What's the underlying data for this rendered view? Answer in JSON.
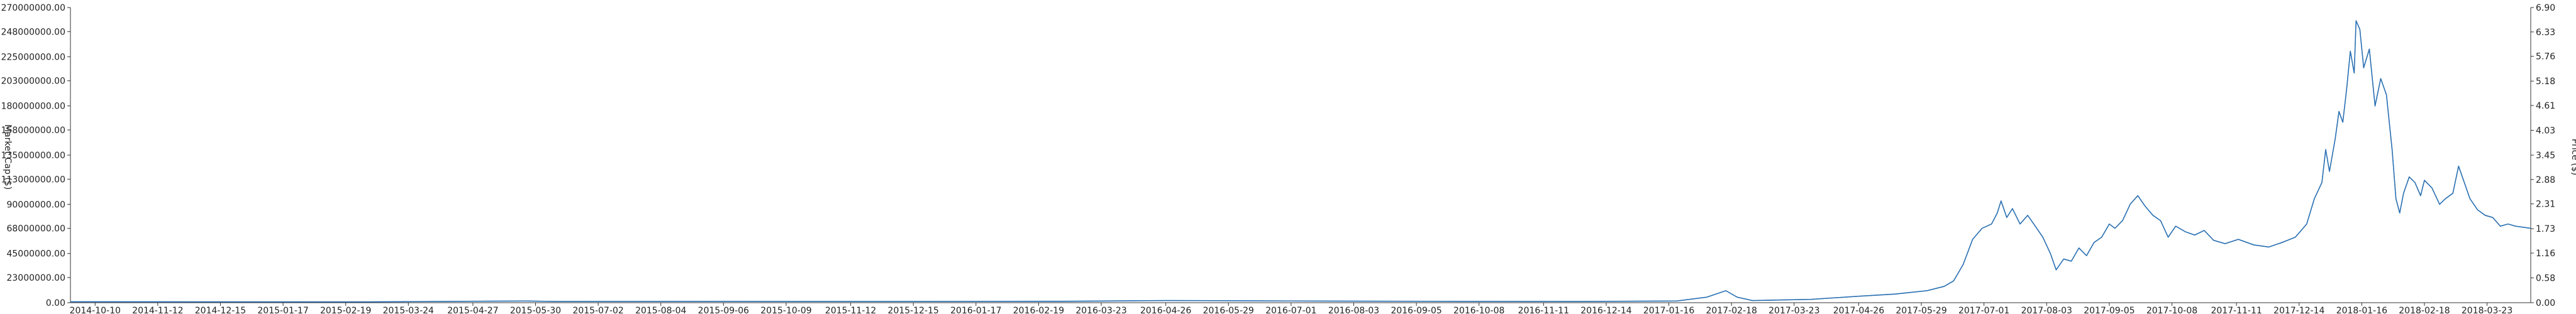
{
  "chart_data": {
    "type": "line",
    "title": "",
    "xlabel": "",
    "y_left": {
      "label": "Market Cap ($)",
      "ticks": [
        "0.00",
        "23000000.00",
        "45000000.00",
        "68000000.00",
        "90000000.00",
        "113000000.00",
        "135000000.00",
        "158000000.00",
        "180000000.00",
        "203000000.00",
        "225000000.00",
        "248000000.00",
        "270000000.00"
      ],
      "ylim": [
        0,
        270000000
      ]
    },
    "y_right": {
      "label": "Price ($)",
      "ticks": [
        "0.00",
        "0.58",
        "1.16",
        "1.73",
        "2.31",
        "2.88",
        "3.45",
        "4.03",
        "4.61",
        "5.18",
        "5.76",
        "6.33",
        "6.90"
      ],
      "ylim": [
        0,
        6.9
      ]
    },
    "x_ticks": [
      "2014-10-10",
      "2014-11-12",
      "2014-12-15",
      "2015-01-17",
      "2015-02-19",
      "2015-03-24",
      "2015-04-27",
      "2015-05-30",
      "2015-07-02",
      "2015-08-04",
      "2015-09-06",
      "2015-10-09",
      "2015-11-12",
      "2015-12-15",
      "2016-01-17",
      "2016-02-19",
      "2016-03-23",
      "2016-04-26",
      "2016-05-29",
      "2016-07-01",
      "2016-08-03",
      "2016-09-05",
      "2016-10-08",
      "2016-11-11",
      "2016-12-14",
      "2017-01-16",
      "2017-02-18",
      "2017-03-23",
      "2017-04-26",
      "2017-05-29",
      "2017-07-01",
      "2017-08-03",
      "2017-09-05",
      "2017-10-08",
      "2017-11-11",
      "2017-12-14",
      "2018-01-16",
      "2018-02-18",
      "2018-03-23"
    ],
    "x_range": [
      "2014-09-27",
      "2018-04-15"
    ],
    "grid": false,
    "legend": "none",
    "series": [
      {
        "axis": "left",
        "color": "#4fa3d9",
        "points": [
          [
            "2014-09-27",
            900000
          ],
          [
            "2014-12-01",
            800000
          ],
          [
            "2015-03-01",
            700000
          ],
          [
            "2015-05-25",
            1500000
          ],
          [
            "2015-06-10",
            1100000
          ],
          [
            "2015-09-01",
            1200000
          ],
          [
            "2015-12-01",
            1000000
          ],
          [
            "2016-03-01",
            1400000
          ],
          [
            "2016-04-26",
            2000000
          ],
          [
            "2016-07-01",
            1600000
          ],
          [
            "2016-10-01",
            1200000
          ],
          [
            "2016-12-01",
            1100000
          ],
          [
            "2017-01-20",
            1500000
          ],
          [
            "2017-02-05",
            5000000
          ],
          [
            "2017-02-15",
            11000000
          ],
          [
            "2017-02-21",
            5000000
          ],
          [
            "2017-03-01",
            2000000
          ],
          [
            "2017-04-01",
            3000000
          ],
          [
            "2017-04-26",
            6000000
          ],
          [
            "2017-05-15",
            8000000
          ],
          [
            "2017-06-01",
            11000000
          ],
          [
            "2017-06-10",
            15000000
          ],
          [
            "2017-06-15",
            20000000
          ],
          [
            "2017-06-20",
            35000000
          ],
          [
            "2017-06-25",
            58000000
          ],
          [
            "2017-06-30",
            68000000
          ],
          [
            "2017-07-05",
            72000000
          ],
          [
            "2017-07-08",
            82000000
          ],
          [
            "2017-07-10",
            93000000
          ],
          [
            "2017-07-13",
            78000000
          ],
          [
            "2017-07-16",
            86000000
          ],
          [
            "2017-07-20",
            72000000
          ],
          [
            "2017-07-24",
            80000000
          ],
          [
            "2017-07-28",
            70000000
          ],
          [
            "2017-08-01",
            60000000
          ],
          [
            "2017-08-05",
            45000000
          ],
          [
            "2017-08-08",
            30000000
          ],
          [
            "2017-08-12",
            40000000
          ],
          [
            "2017-08-16",
            38000000
          ],
          [
            "2017-08-20",
            50000000
          ],
          [
            "2017-08-24",
            43000000
          ],
          [
            "2017-08-28",
            55000000
          ],
          [
            "2017-09-01",
            60000000
          ],
          [
            "2017-09-05",
            72000000
          ],
          [
            "2017-09-08",
            68000000
          ],
          [
            "2017-09-12",
            75000000
          ],
          [
            "2017-09-16",
            90000000
          ],
          [
            "2017-09-20",
            98000000
          ],
          [
            "2017-09-24",
            88000000
          ],
          [
            "2017-09-28",
            80000000
          ],
          [
            "2017-10-02",
            75000000
          ],
          [
            "2017-10-06",
            60000000
          ],
          [
            "2017-10-10",
            70000000
          ],
          [
            "2017-10-15",
            65000000
          ],
          [
            "2017-10-20",
            62000000
          ],
          [
            "2017-10-25",
            66000000
          ],
          [
            "2017-10-30",
            57000000
          ],
          [
            "2017-11-05",
            54000000
          ],
          [
            "2017-11-12",
            58000000
          ],
          [
            "2017-11-20",
            53000000
          ],
          [
            "2017-11-28",
            51000000
          ],
          [
            "2017-12-05",
            55000000
          ],
          [
            "2017-12-12",
            60000000
          ],
          [
            "2017-12-18",
            72000000
          ],
          [
            "2017-12-22",
            95000000
          ],
          [
            "2017-12-26",
            110000000
          ],
          [
            "2017-12-28",
            140000000
          ],
          [
            "2017-12-30",
            120000000
          ],
          [
            "2018-01-02",
            150000000
          ],
          [
            "2018-01-04",
            175000000
          ],
          [
            "2018-01-06",
            165000000
          ],
          [
            "2018-01-08",
            195000000
          ],
          [
            "2018-01-10",
            230000000
          ],
          [
            "2018-01-12",
            210000000
          ],
          [
            "2018-01-13",
            258000000
          ],
          [
            "2018-01-15",
            250000000
          ],
          [
            "2018-01-17",
            215000000
          ],
          [
            "2018-01-20",
            232000000
          ],
          [
            "2018-01-23",
            180000000
          ],
          [
            "2018-01-26",
            205000000
          ],
          [
            "2018-01-29",
            190000000
          ],
          [
            "2018-02-01",
            140000000
          ],
          [
            "2018-02-03",
            95000000
          ],
          [
            "2018-02-05",
            82000000
          ],
          [
            "2018-02-07",
            100000000
          ],
          [
            "2018-02-10",
            115000000
          ],
          [
            "2018-02-13",
            110000000
          ],
          [
            "2018-02-16",
            98000000
          ],
          [
            "2018-02-18",
            112000000
          ],
          [
            "2018-02-22",
            105000000
          ],
          [
            "2018-02-26",
            90000000
          ],
          [
            "2018-03-01",
            95000000
          ],
          [
            "2018-03-05",
            100000000
          ],
          [
            "2018-03-08",
            125000000
          ],
          [
            "2018-03-11",
            110000000
          ],
          [
            "2018-03-14",
            95000000
          ],
          [
            "2018-03-18",
            85000000
          ],
          [
            "2018-03-22",
            80000000
          ],
          [
            "2018-03-26",
            78000000
          ],
          [
            "2018-03-30",
            70000000
          ],
          [
            "2018-04-03",
            72000000
          ],
          [
            "2018-04-07",
            70000000
          ],
          [
            "2018-04-15",
            68000000
          ]
        ]
      },
      {
        "axis": "right",
        "color": "#2d6fb0",
        "points": [
          [
            "2014-09-27",
            0.02
          ],
          [
            "2014-12-01",
            0.02
          ],
          [
            "2015-03-01",
            0.02
          ],
          [
            "2015-05-25",
            0.04
          ],
          [
            "2015-06-10",
            0.03
          ],
          [
            "2015-09-01",
            0.03
          ],
          [
            "2015-12-01",
            0.03
          ],
          [
            "2016-03-01",
            0.03
          ],
          [
            "2016-04-26",
            0.05
          ],
          [
            "2016-07-01",
            0.04
          ],
          [
            "2016-10-01",
            0.03
          ],
          [
            "2016-12-01",
            0.03
          ],
          [
            "2017-01-20",
            0.04
          ],
          [
            "2017-02-05",
            0.13
          ],
          [
            "2017-02-15",
            0.28
          ],
          [
            "2017-02-21",
            0.13
          ],
          [
            "2017-03-01",
            0.05
          ],
          [
            "2017-04-01",
            0.08
          ],
          [
            "2017-04-26",
            0.15
          ],
          [
            "2017-05-15",
            0.2
          ],
          [
            "2017-06-01",
            0.28
          ],
          [
            "2017-06-10",
            0.38
          ],
          [
            "2017-06-15",
            0.51
          ],
          [
            "2017-06-20",
            0.89
          ],
          [
            "2017-06-25",
            1.48
          ],
          [
            "2017-06-30",
            1.74
          ],
          [
            "2017-07-05",
            1.84
          ],
          [
            "2017-07-08",
            2.1
          ],
          [
            "2017-07-10",
            2.38
          ],
          [
            "2017-07-13",
            1.99
          ],
          [
            "2017-07-16",
            2.2
          ],
          [
            "2017-07-20",
            1.84
          ],
          [
            "2017-07-24",
            2.04
          ],
          [
            "2017-07-28",
            1.79
          ],
          [
            "2017-08-01",
            1.53
          ],
          [
            "2017-08-05",
            1.15
          ],
          [
            "2017-08-08",
            0.77
          ],
          [
            "2017-08-12",
            1.02
          ],
          [
            "2017-08-16",
            0.97
          ],
          [
            "2017-08-20",
            1.28
          ],
          [
            "2017-08-24",
            1.1
          ],
          [
            "2017-08-28",
            1.41
          ],
          [
            "2017-09-01",
            1.53
          ],
          [
            "2017-09-05",
            1.84
          ],
          [
            "2017-09-08",
            1.74
          ],
          [
            "2017-09-12",
            1.92
          ],
          [
            "2017-09-16",
            2.3
          ],
          [
            "2017-09-20",
            2.5
          ],
          [
            "2017-09-24",
            2.25
          ],
          [
            "2017-09-28",
            2.04
          ],
          [
            "2017-10-02",
            1.92
          ],
          [
            "2017-10-06",
            1.53
          ],
          [
            "2017-10-10",
            1.79
          ],
          [
            "2017-10-15",
            1.66
          ],
          [
            "2017-10-20",
            1.58
          ],
          [
            "2017-10-25",
            1.69
          ],
          [
            "2017-10-30",
            1.46
          ],
          [
            "2017-11-05",
            1.38
          ],
          [
            "2017-11-12",
            1.48
          ],
          [
            "2017-11-20",
            1.35
          ],
          [
            "2017-11-28",
            1.3
          ],
          [
            "2017-12-05",
            1.41
          ],
          [
            "2017-12-12",
            1.53
          ],
          [
            "2017-12-18",
            1.84
          ],
          [
            "2017-12-22",
            2.43
          ],
          [
            "2017-12-26",
            2.81
          ],
          [
            "2017-12-28",
            3.58
          ],
          [
            "2017-12-30",
            3.07
          ],
          [
            "2018-01-02",
            3.83
          ],
          [
            "2018-01-04",
            4.47
          ],
          [
            "2018-01-06",
            4.22
          ],
          [
            "2018-01-08",
            4.98
          ],
          [
            "2018-01-10",
            5.88
          ],
          [
            "2018-01-12",
            5.37
          ],
          [
            "2018-01-13",
            6.59
          ],
          [
            "2018-01-15",
            6.39
          ],
          [
            "2018-01-17",
            5.49
          ],
          [
            "2018-01-20",
            5.93
          ],
          [
            "2018-01-23",
            4.6
          ],
          [
            "2018-01-26",
            5.24
          ],
          [
            "2018-01-29",
            4.86
          ],
          [
            "2018-02-01",
            3.58
          ],
          [
            "2018-02-03",
            2.43
          ],
          [
            "2018-02-05",
            2.1
          ],
          [
            "2018-02-07",
            2.56
          ],
          [
            "2018-02-10",
            2.94
          ],
          [
            "2018-02-13",
            2.81
          ],
          [
            "2018-02-16",
            2.5
          ],
          [
            "2018-02-18",
            2.86
          ],
          [
            "2018-02-22",
            2.68
          ],
          [
            "2018-02-26",
            2.3
          ],
          [
            "2018-03-01",
            2.43
          ],
          [
            "2018-03-05",
            2.56
          ],
          [
            "2018-03-08",
            3.19
          ],
          [
            "2018-03-11",
            2.81
          ],
          [
            "2018-03-14",
            2.43
          ],
          [
            "2018-03-18",
            2.17
          ],
          [
            "2018-03-22",
            2.04
          ],
          [
            "2018-03-26",
            1.99
          ],
          [
            "2018-03-30",
            1.79
          ],
          [
            "2018-04-03",
            1.84
          ],
          [
            "2018-04-07",
            1.79
          ],
          [
            "2018-04-15",
            1.74
          ]
        ]
      }
    ]
  }
}
